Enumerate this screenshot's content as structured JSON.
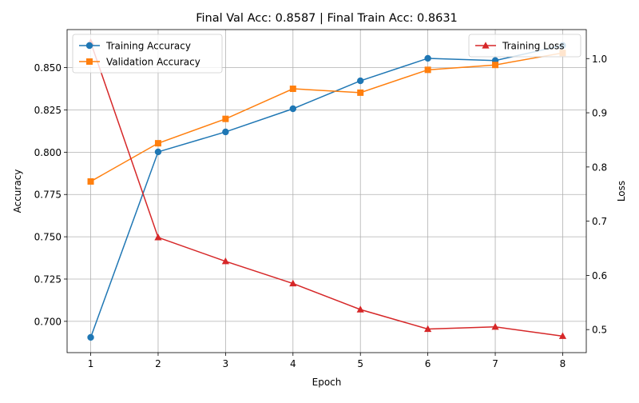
{
  "chart_data": {
    "type": "line",
    "title": "Final Val Acc: 0.8587 | Final Train Acc: 0.8631",
    "xlabel": "Epoch",
    "ylabel_left": "Accuracy",
    "ylabel_right": "Loss",
    "x": [
      1,
      2,
      3,
      4,
      5,
      6,
      7,
      8
    ],
    "x_ticks": [
      "1",
      "2",
      "3",
      "4",
      "5",
      "6",
      "7",
      "8"
    ],
    "xlim": [
      0.65,
      8.35
    ],
    "ylim_left": [
      0.6815,
      0.8725
    ],
    "ylim_right": [
      0.4575,
      1.0535
    ],
    "y_ticks_left": [
      "0.700",
      "0.725",
      "0.750",
      "0.775",
      "0.800",
      "0.825",
      "0.850"
    ],
    "y_ticks_right": [
      "0.5",
      "0.6",
      "0.7",
      "0.8",
      "0.9",
      "1.0"
    ],
    "grid": true,
    "series": [
      {
        "name": "Training Accuracy",
        "axis": "left",
        "color": "#1f77b4",
        "marker": "circle",
        "values": [
          0.6905,
          0.8002,
          0.812,
          0.8257,
          0.8422,
          0.8555,
          0.8542,
          0.8631
        ]
      },
      {
        "name": "Validation Accuracy",
        "axis": "left",
        "color": "#ff7f0e",
        "marker": "square",
        "values": [
          0.7827,
          0.8053,
          0.8197,
          0.8375,
          0.8352,
          0.8487,
          0.8516,
          0.8587
        ]
      },
      {
        "name": "Training Loss",
        "axis": "right",
        "color": "#d62728",
        "marker": "triangle",
        "values": [
          1.03,
          0.67,
          0.626,
          0.585,
          0.537,
          0.501,
          0.505,
          0.488
        ]
      }
    ],
    "legend_left_placement": "upper-left",
    "legend_right_placement": "upper-right"
  }
}
